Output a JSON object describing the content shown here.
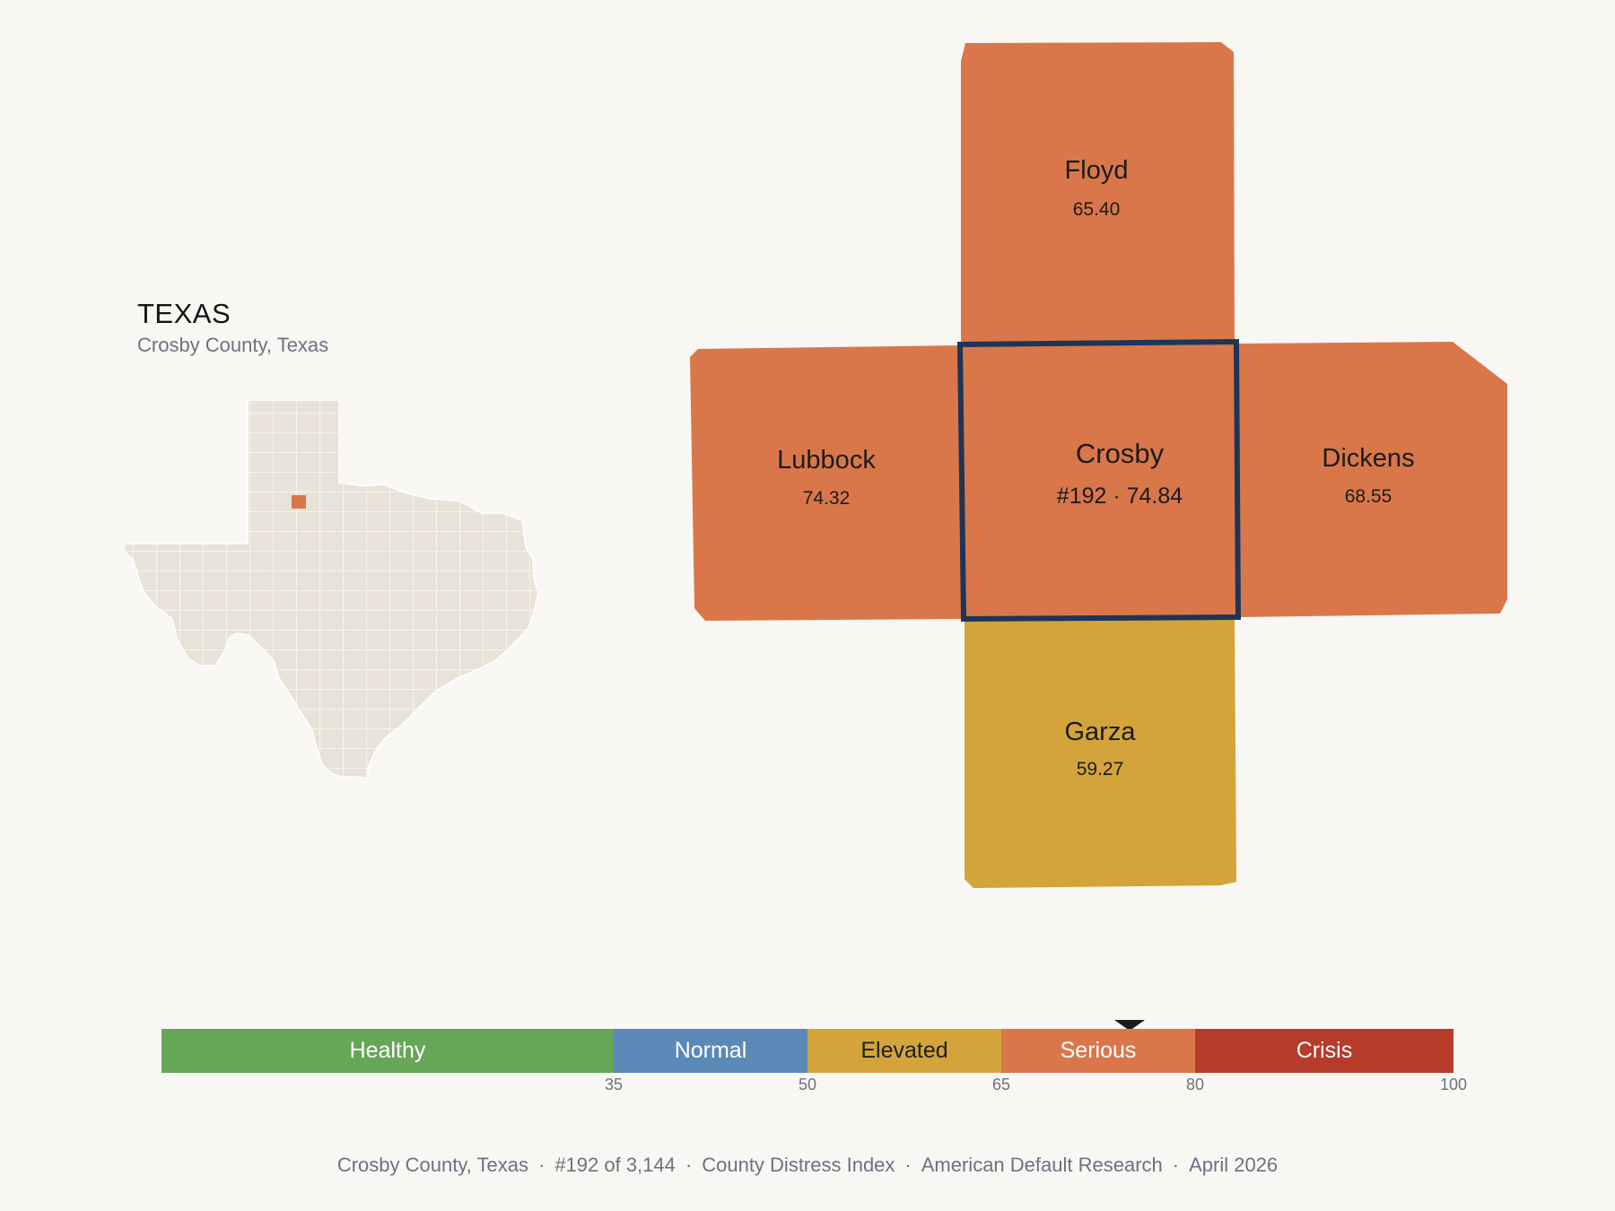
{
  "state": {
    "title": "TEXAS",
    "subtitle": "Crosby County, Texas"
  },
  "selected_county": {
    "name": "Crosby",
    "label": "#192 · 74.84",
    "rank": 192,
    "score": 74.84,
    "color": "#d9774a",
    "outline_color": "#1d3557"
  },
  "neighbors": [
    {
      "id": "floyd",
      "name": "Floyd",
      "score": "65.40",
      "color": "#d9774a"
    },
    {
      "id": "lubbock",
      "name": "Lubbock",
      "score": "74.32",
      "color": "#d9774a"
    },
    {
      "id": "dickens",
      "name": "Dickens",
      "score": "68.55",
      "color": "#d9774a"
    },
    {
      "id": "garza",
      "name": "Garza",
      "score": "59.27",
      "color": "#d3a43a"
    }
  ],
  "inset_map": {
    "state_fill": "#e8e2d8",
    "border_color": "#ffffff",
    "highlight_color": "#d9774a"
  },
  "legend": {
    "pointer_value": 74.84,
    "segments": [
      {
        "label": "Healthy",
        "from": 0,
        "to": 35,
        "color": "#66a657"
      },
      {
        "label": "Normal",
        "from": 35,
        "to": 50,
        "color": "#5b89b8"
      },
      {
        "label": "Elevated",
        "from": 50,
        "to": 65,
        "color": "#d3a43a"
      },
      {
        "label": "Serious",
        "from": 65,
        "to": 80,
        "color": "#d9774a"
      },
      {
        "label": "Crisis",
        "from": 80,
        "to": 100,
        "color": "#b73b2b"
      }
    ],
    "ticks": [
      "35",
      "50",
      "65",
      "80",
      "100"
    ]
  },
  "footer": {
    "county": "Crosby County, Texas",
    "rank": "#192 of 3,144",
    "index": "County Distress Index",
    "org": "American Default Research",
    "date": "April 2026",
    "separator": "·"
  }
}
